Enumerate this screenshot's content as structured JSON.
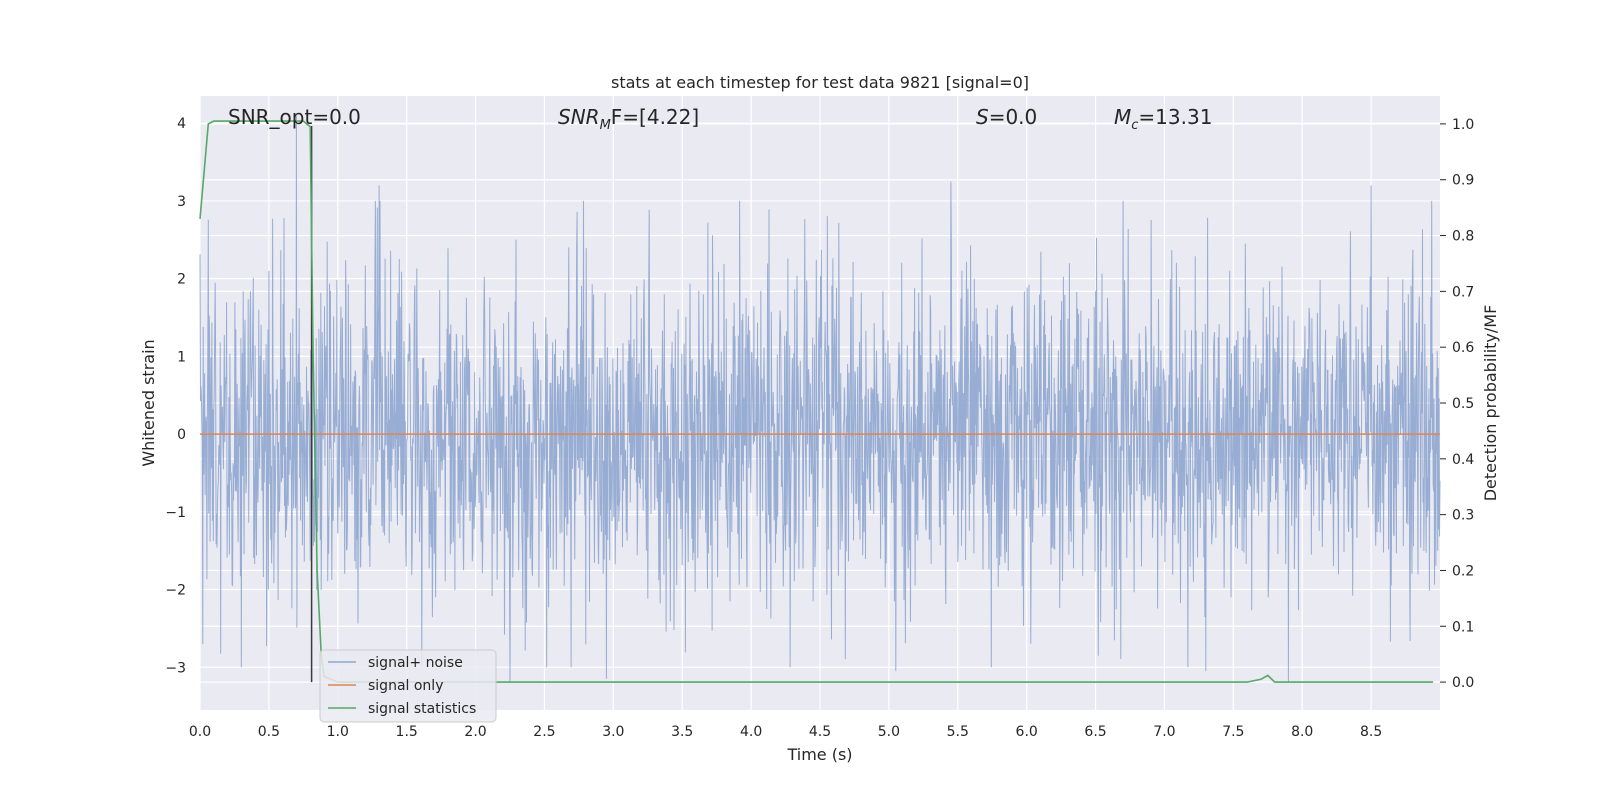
{
  "chart_data": {
    "type": "line",
    "title": "stats at each timestep for test data 9821 [signal=0]",
    "xlabel": "Time (s)",
    "ylabel": "Whitened strain",
    "y2label": "Detection probability/MF",
    "xlim": [
      0.0,
      9.0
    ],
    "ylim": [
      -3.55,
      4.35
    ],
    "y2lim": [
      -0.05,
      1.05
    ],
    "xticks": [
      0.0,
      0.5,
      1.0,
      1.5,
      2.0,
      2.5,
      3.0,
      3.5,
      4.0,
      4.5,
      5.0,
      5.5,
      6.0,
      6.5,
      7.0,
      7.5,
      8.0,
      8.5
    ],
    "xtick_labels": [
      "0.0",
      "0.5",
      "1.0",
      "1.5",
      "2.0",
      "2.5",
      "3.0",
      "3.5",
      "4.0",
      "4.5",
      "5.0",
      "5.5",
      "6.0",
      "6.5",
      "7.0",
      "7.5",
      "8.0",
      "8.5"
    ],
    "yticks": [
      -3,
      -2,
      -1,
      0,
      1,
      2,
      3,
      4
    ],
    "ytick_labels": [
      "−3",
      "−2",
      "−1",
      "0",
      "1",
      "2",
      "3",
      "4"
    ],
    "y2ticks": [
      0.0,
      0.1,
      0.2,
      0.3,
      0.4,
      0.5,
      0.6,
      0.7,
      0.8,
      0.9,
      1.0
    ],
    "y2tick_labels": [
      "0.0",
      "0.1",
      "0.2",
      "0.3",
      "0.4",
      "0.5",
      "0.6",
      "0.7",
      "0.8",
      "0.9",
      "1.0"
    ],
    "grid": true,
    "legend_position": "lower-left",
    "annotations": {
      "snr_opt": "SNR_opt=0.0",
      "snr_mf_sym": "SNR",
      "snr_mf_sub": "M",
      "snr_mf_rest": "F=[4.22]",
      "s_sym": "S",
      "s_rest": "=0.0",
      "mc_sym": "M",
      "mc_sub": "c",
      "mc_rest": "=13.31"
    },
    "vertical_marker_x": 0.81,
    "series": [
      {
        "name": "signal+ noise",
        "color": "#8fa6cf",
        "axis": "left",
        "kind": "noise",
        "sample_rate": 2048,
        "envelope_std": 1.05,
        "peaks": [
          {
            "x": 0.7,
            "y": 4.1
          },
          {
            "x": 0.02,
            "y": -2.7
          },
          {
            "x": 0.3,
            "y": -3.0
          },
          {
            "x": 2.25,
            "y": -3.2
          },
          {
            "x": 2.95,
            "y": -3.15
          },
          {
            "x": 1.3,
            "y": 3.2
          },
          {
            "x": 5.45,
            "y": 3.25
          },
          {
            "x": 8.5,
            "y": 3.2
          },
          {
            "x": 7.9,
            "y": -3.2
          },
          {
            "x": 7.3,
            "y": -3.05
          },
          {
            "x": 5.05,
            "y": -3.05
          }
        ]
      },
      {
        "name": "signal only",
        "color": "#dd8452",
        "axis": "left",
        "x": [
          0.0,
          9.0
        ],
        "y": [
          0.0,
          0.0
        ]
      },
      {
        "name": "signal statistics",
        "color": "#55a868",
        "axis": "right",
        "x": [
          0.0,
          0.06,
          0.1,
          0.2,
          0.4,
          0.6,
          0.75,
          0.8,
          0.82,
          0.85,
          0.88,
          0.9,
          0.95,
          1.0,
          2.0,
          4.0,
          6.0,
          7.6,
          7.7,
          7.75,
          7.8,
          7.9,
          8.5,
          8.95
        ],
        "y": [
          0.83,
          1.0,
          1.005,
          1.005,
          1.005,
          1.005,
          1.005,
          0.995,
          0.6,
          0.2,
          0.05,
          0.01,
          0.005,
          0.0,
          0.0,
          0.0,
          0.0,
          0.0,
          0.005,
          0.012,
          0.0,
          0.0,
          0.0,
          0.0
        ]
      }
    ]
  }
}
